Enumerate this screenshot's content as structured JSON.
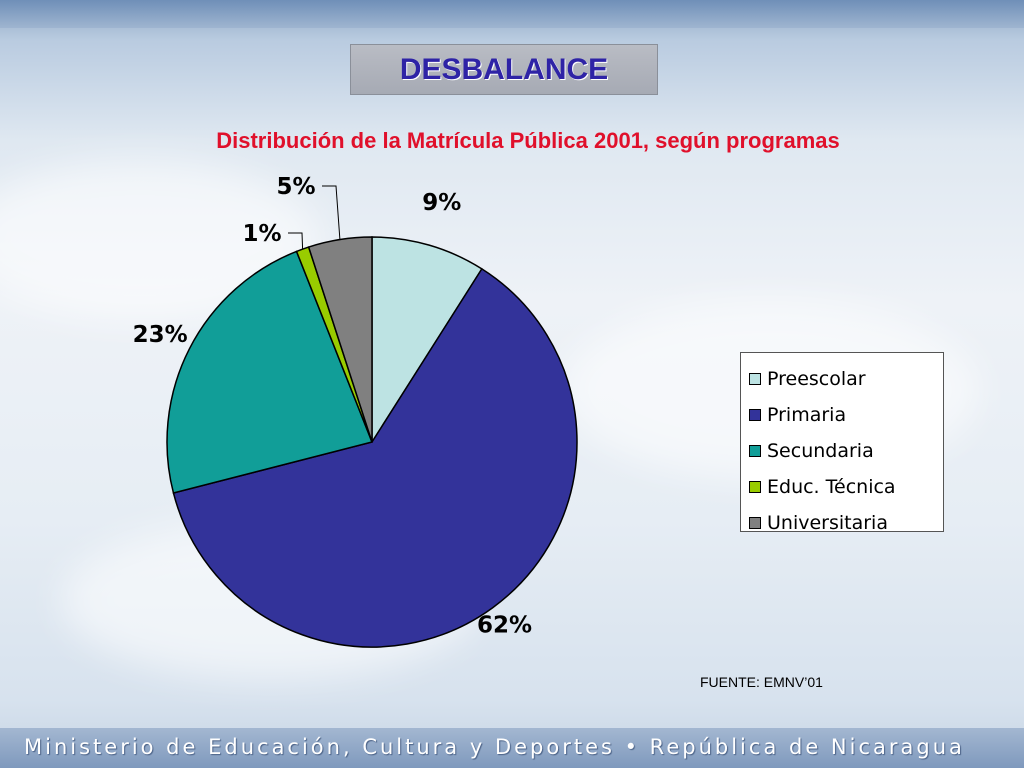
{
  "slide": {
    "heading": "DESBALANCE",
    "source": "FUENTE: EMNV’01",
    "footer": "Ministerio de Educación, Cultura y Deportes • República de Nicaragua"
  },
  "chart_data": {
    "type": "pie",
    "title": "Distribución de la Matrícula Pública 2001, según programas",
    "categories": [
      "Preescolar",
      "Primaria",
      "Secundaria",
      "Educ. Técnica",
      "Universitaria"
    ],
    "values": [
      9,
      62,
      23,
      1,
      5
    ],
    "labels": [
      "9%",
      "62%",
      "23%",
      "1%",
      "5%"
    ],
    "colors": [
      "#bde3e3",
      "#33339a",
      "#119e98",
      "#99cc00",
      "#808080"
    ],
    "legend_position": "right"
  }
}
